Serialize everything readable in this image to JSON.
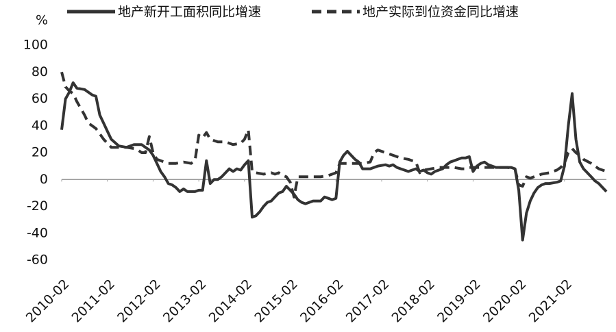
{
  "chart_data": {
    "type": "line",
    "y_unit_label": "%",
    "xlim": [
      0,
      143
    ],
    "xticks": [
      {
        "value": 0,
        "label": "2010-02"
      },
      {
        "value": 12,
        "label": "2011-02"
      },
      {
        "value": 24,
        "label": "2012-02"
      },
      {
        "value": 36,
        "label": "2013-02"
      },
      {
        "value": 48,
        "label": "2014-02"
      },
      {
        "value": 60,
        "label": "2015-02"
      },
      {
        "value": 72,
        "label": "2016-02"
      },
      {
        "value": 84,
        "label": "2017-02"
      },
      {
        "value": 96,
        "label": "2018-02"
      },
      {
        "value": 108,
        "label": "2019-02"
      },
      {
        "value": 120,
        "label": "2020-02"
      },
      {
        "value": 132,
        "label": "2021-02"
      }
    ],
    "ylim": [
      -60,
      100
    ],
    "yticks": [
      -60,
      -40,
      -20,
      0,
      20,
      40,
      60,
      80,
      100
    ],
    "grid": false,
    "legend": "top",
    "series": [
      {
        "name": "地产新开工面积同比增速",
        "color": "#333333",
        "dashed": false,
        "x": [
          0,
          1,
          2,
          3,
          4,
          6,
          8,
          9,
          10,
          11,
          12,
          13,
          15,
          17,
          19,
          21,
          22,
          23,
          24,
          25,
          26,
          27,
          28,
          29,
          30,
          31,
          32,
          33,
          35,
          36,
          37,
          38,
          39,
          40,
          41,
          42,
          43,
          44,
          45,
          46,
          47,
          48,
          49,
          50,
          51,
          52,
          53,
          54,
          55,
          56,
          57,
          58,
          59,
          60,
          61,
          62,
          63,
          64,
          65,
          66,
          67,
          68,
          69,
          70,
          71,
          72,
          73,
          74,
          75,
          76,
          77,
          78,
          79,
          80,
          81,
          83,
          85,
          86,
          87,
          88,
          89,
          90,
          91,
          92,
          93,
          94,
          95,
          96,
          97,
          98,
          99,
          100,
          101,
          102,
          103,
          104,
          105,
          106,
          107,
          108,
          109,
          110,
          111,
          112,
          113,
          114,
          116,
          118,
          119,
          120,
          121,
          122,
          123,
          124,
          125,
          126,
          127,
          128,
          130,
          131,
          132,
          133,
          134,
          135,
          136,
          137,
          138,
          139,
          140,
          141,
          142,
          143
        ],
        "values": [
          37,
          60,
          65,
          72,
          68,
          67,
          63,
          62,
          48,
          42,
          36,
          30,
          25,
          24,
          26,
          26,
          24,
          22,
          18,
          12,
          6,
          2,
          -3,
          -4,
          -6,
          -9,
          -7,
          -9,
          -9,
          -8,
          -8,
          14,
          -3,
          0,
          0,
          2,
          5,
          8,
          6,
          8,
          7,
          11,
          14,
          -28,
          -27,
          -24,
          -20,
          -17,
          -16,
          -13,
          -10,
          -9,
          -5,
          -8,
          -11,
          -15,
          -17,
          -18,
          -17,
          -16,
          -16,
          -16,
          -13,
          -14,
          -15,
          -14,
          13,
          18,
          21,
          18,
          15,
          13,
          8,
          8,
          8,
          10,
          11,
          10,
          11,
          9,
          8,
          7,
          6,
          7,
          8,
          6,
          7,
          5,
          4,
          6,
          7,
          8,
          11,
          13,
          14,
          15,
          16,
          16,
          17,
          6,
          10,
          12,
          13,
          11,
          10,
          9,
          9,
          9,
          8,
          -8,
          -45,
          -25,
          -16,
          -10,
          -6,
          -4,
          -3,
          -3,
          -2,
          -1,
          10,
          40,
          64,
          30,
          13,
          8,
          5,
          2,
          -1,
          -3,
          -6,
          -9
        ]
      },
      {
        "name": "地产实际到位资金同比增速",
        "color": "#333333",
        "dashed": true,
        "x": [
          0,
          1,
          2,
          3,
          4,
          6,
          7,
          8,
          9,
          10,
          11,
          12,
          13,
          15,
          17,
          19,
          20,
          21,
          22,
          23,
          24,
          25,
          26,
          27,
          28,
          30,
          32,
          34,
          35,
          36,
          37,
          38,
          39,
          41,
          43,
          45,
          47,
          48,
          49,
          50,
          51,
          53,
          55,
          56,
          57,
          58,
          59,
          60,
          61,
          62,
          64,
          66,
          68,
          70,
          72,
          73,
          75,
          77,
          79,
          81,
          82,
          83,
          85,
          87,
          89,
          91,
          93,
          94,
          95,
          97,
          99,
          101,
          103,
          105,
          106,
          107,
          109,
          111,
          113,
          115,
          117,
          119,
          120,
          121,
          122,
          123,
          124,
          126,
          128,
          130,
          131,
          132,
          133,
          134,
          135,
          136,
          137,
          139,
          141,
          143
        ],
        "values": [
          80,
          69,
          66,
          64,
          58,
          48,
          42,
          40,
          38,
          34,
          30,
          27,
          24,
          24,
          24,
          23,
          22,
          20,
          20,
          32,
          20,
          15,
          14,
          13,
          12,
          12,
          13,
          12,
          14,
          33,
          31,
          35,
          30,
          28,
          28,
          26,
          27,
          30,
          37,
          6,
          5,
          4,
          5,
          4,
          5,
          3,
          2,
          -2,
          -13,
          2,
          2,
          2,
          2,
          3,
          5,
          12,
          12,
          12,
          12,
          13,
          20,
          22,
          20,
          18,
          16,
          15,
          13,
          5,
          7,
          8,
          9,
          9,
          9,
          8,
          8,
          9,
          9,
          9,
          9,
          9,
          9,
          8,
          -4,
          -5,
          2,
          1,
          2,
          4,
          5,
          7,
          9,
          12,
          20,
          23,
          20,
          18,
          15,
          12,
          8,
          6
        ]
      }
    ]
  }
}
